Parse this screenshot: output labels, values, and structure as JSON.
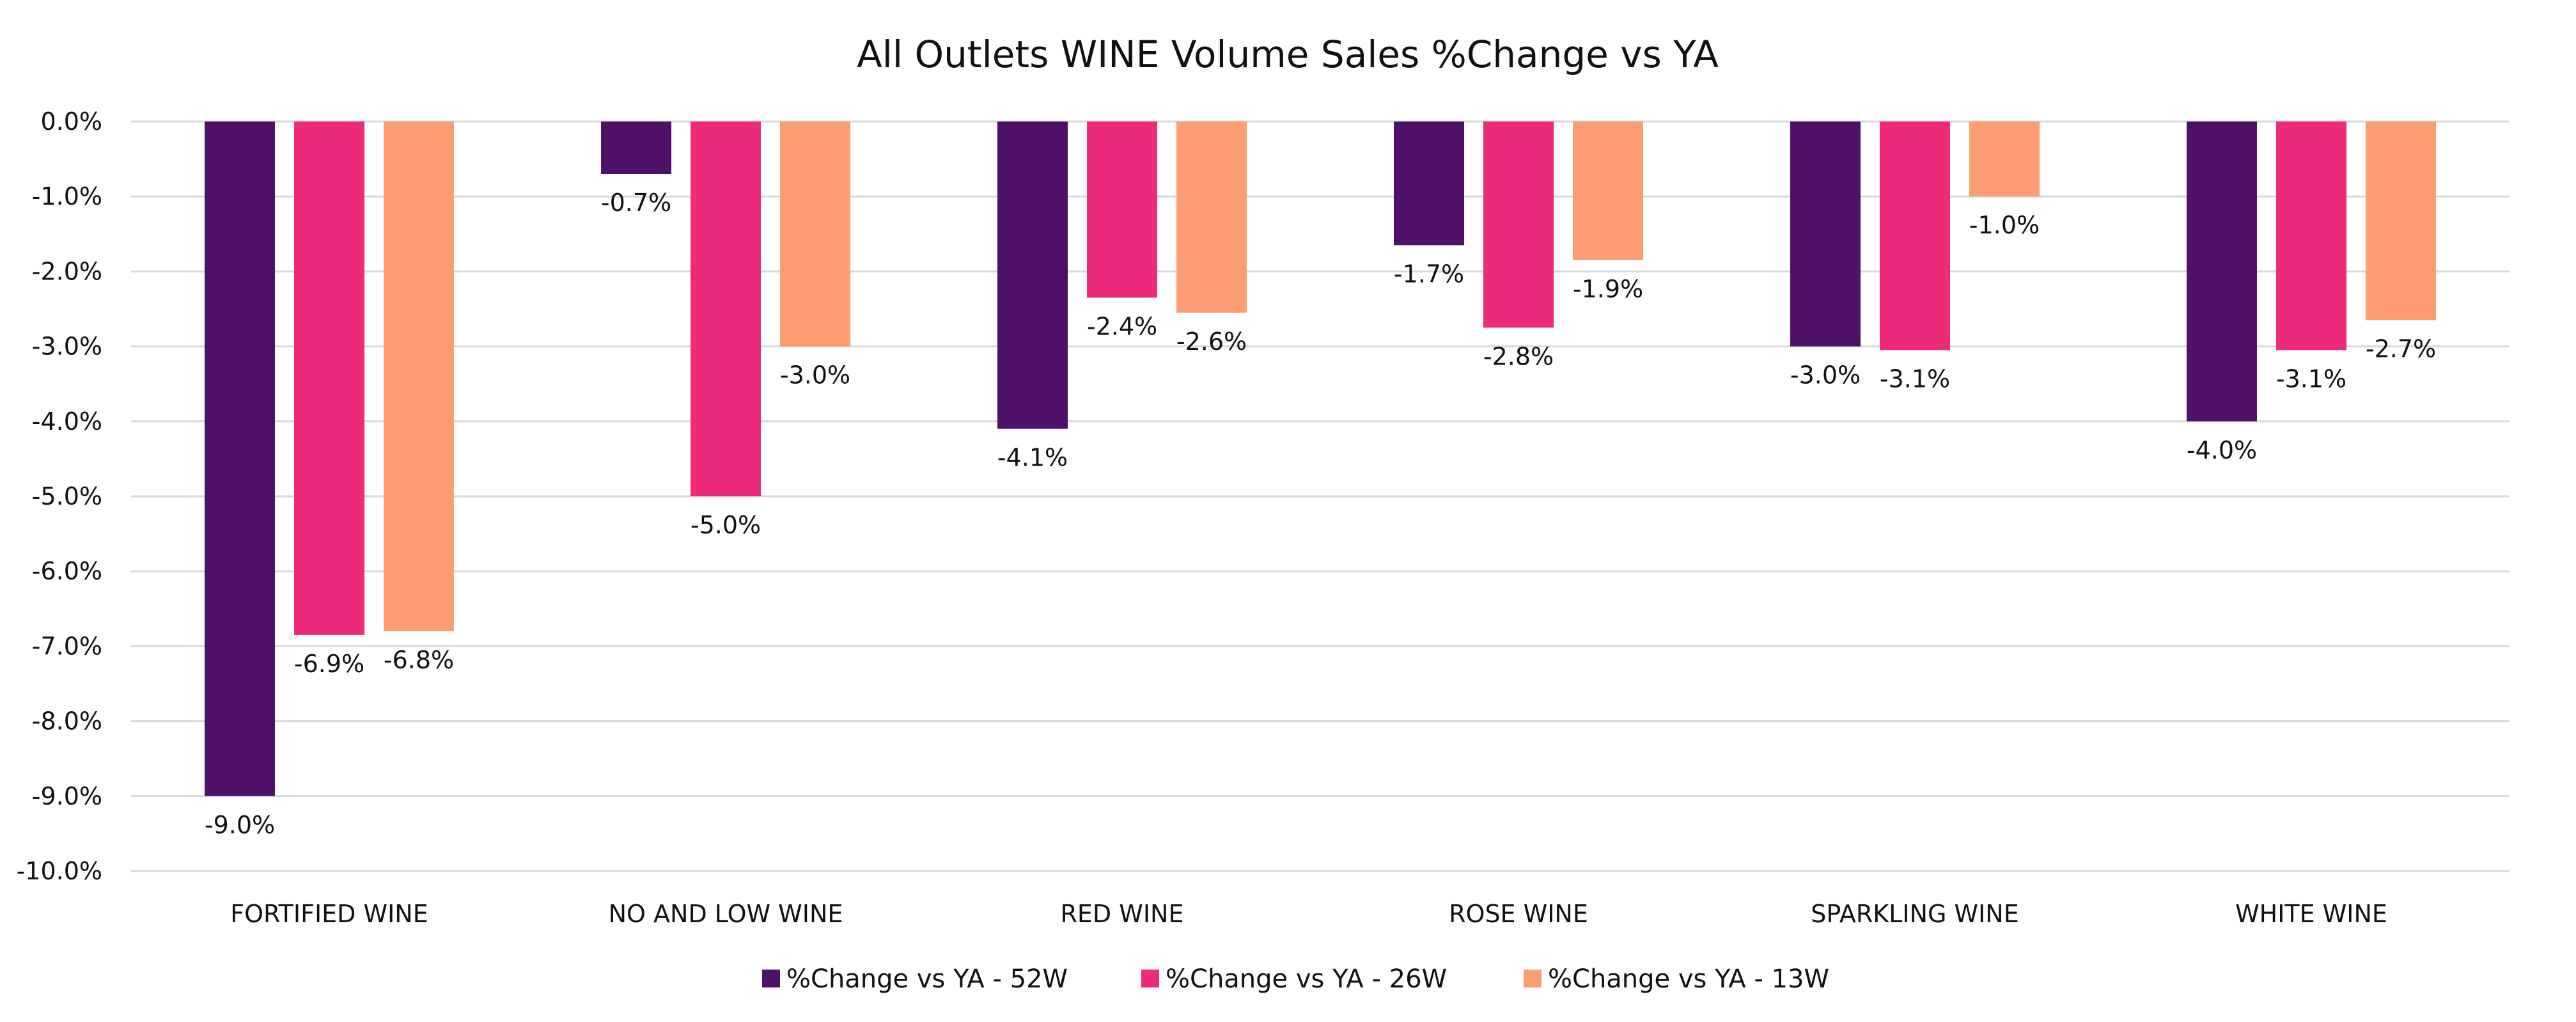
{
  "chart_data": {
    "type": "bar",
    "title": "All Outlets WINE Volume Sales %Change vs YA",
    "xlabel": "",
    "ylabel": "",
    "ylim": [
      -10.0,
      0.0
    ],
    "yticks": [
      0,
      -1,
      -2,
      -3,
      -4,
      -5,
      -6,
      -7,
      -8,
      -9,
      -10
    ],
    "ytick_labels": [
      "0.0%",
      "-1.0%",
      "-2.0%",
      "-3.0%",
      "-4.0%",
      "-5.0%",
      "-6.0%",
      "-7.0%",
      "-8.0%",
      "-9.0%",
      "-10.0%"
    ],
    "grid": true,
    "legend_position": "bottom",
    "categories": [
      "FORTIFIED WINE",
      "NO AND LOW WINE",
      "RED WINE",
      "ROSE WINE",
      "SPARKLING WINE",
      "WHITE WINE"
    ],
    "series": [
      {
        "name": "%Change vs YA -  52W",
        "color": "#4f1068",
        "values": [
          -9.0,
          -0.7,
          -4.1,
          -1.65,
          -3.0,
          -4.0
        ],
        "labels": [
          "-9.0%",
          "-0.7%",
          "-4.1%",
          "-1.7%",
          "-3.0%",
          "-4.0%"
        ]
      },
      {
        "name": "%Change vs YA -  26W",
        "color": "#ee2a7b",
        "values": [
          -6.85,
          -5.0,
          -2.35,
          -2.75,
          -3.05,
          -3.05
        ],
        "labels": [
          "-6.9%",
          "-5.0%",
          "-2.4%",
          "-2.8%",
          "-3.1%",
          "-3.1%"
        ]
      },
      {
        "name": "%Change vs YA -  13W",
        "color": "#fe9c72",
        "values": [
          -6.8,
          -3.0,
          -2.55,
          -1.85,
          -1.0,
          -2.65
        ],
        "labels": [
          "-6.8%",
          "-3.0%",
          "-2.6%",
          "-1.9%",
          "-1.0%",
          "-2.7%"
        ]
      }
    ]
  }
}
